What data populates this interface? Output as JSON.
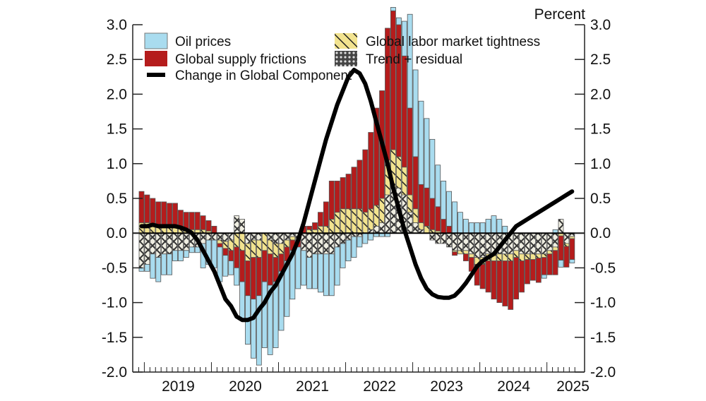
{
  "chart_data": {
    "type": "bar",
    "stacked": true,
    "title": "",
    "ylabel_right": "Percent",
    "xlabel": "",
    "ylim": [
      -2.0,
      3.0
    ],
    "yticks": [
      "3.0",
      "2.5",
      "2.0",
      "1.5",
      "1.0",
      "0.5",
      "0.0",
      "-0.5",
      "-1.0",
      "-1.5",
      "-2.0"
    ],
    "ytick_values": [
      3.0,
      2.5,
      2.0,
      1.5,
      1.0,
      0.5,
      0.0,
      -0.5,
      -1.0,
      -1.5,
      -2.0
    ],
    "xtick_labels": [
      "2019",
      "2020",
      "2021",
      "2022",
      "2023",
      "2024",
      "2025"
    ],
    "x_start": "2018-12",
    "x_frequency": "monthly",
    "legend": {
      "placement": "top-left",
      "items": [
        {
          "key": "oil",
          "label": "Oil prices",
          "color": "#a9dcef",
          "pattern": "solid"
        },
        {
          "key": "labor",
          "label": "Global labor market tightness",
          "color": "#f2e38f",
          "pattern": "diagonal-hatch"
        },
        {
          "key": "supply",
          "label": "Global supply frictions",
          "color": "#b51c1c",
          "pattern": "solid"
        },
        {
          "key": "trend",
          "label": "Trend + residual",
          "color": "#efeee2",
          "pattern": "crosshatch"
        },
        {
          "key": "line",
          "label": "Change in Global Component",
          "color": "#000000",
          "pattern": "line"
        }
      ]
    },
    "series": [
      {
        "name": "Oil prices",
        "key": "oil",
        "values": [
          -0.05,
          -0.1,
          -0.35,
          -0.35,
          -0.3,
          -0.3,
          -0.15,
          -0.15,
          -0.1,
          -0.08,
          -0.08,
          -0.35,
          -0.35,
          -0.4,
          -0.5,
          -0.3,
          -0.2,
          -0.25,
          -0.55,
          -0.7,
          -0.85,
          -1.0,
          -0.95,
          -1.0,
          -0.95,
          -0.85,
          -0.8,
          -0.7,
          -0.6,
          -0.5,
          -0.45,
          -0.5,
          -0.55,
          -0.6,
          -0.6,
          -0.55,
          -0.35,
          -0.3,
          -0.3,
          -0.15,
          -0.15,
          -0.1,
          -0.05,
          -0.05,
          -0.05,
          0.05,
          0.1,
          0.5,
          1.35,
          1.25,
          1.2,
          1.0,
          0.85,
          0.6,
          0.55,
          0.5,
          0.45,
          0.3,
          0.2,
          0.15,
          0.15,
          0.15,
          0.2,
          0.25,
          0.2,
          0.1,
          0.0,
          0.0,
          0.0,
          0.0,
          0.0,
          0.0,
          -0.05,
          0.0,
          0.05,
          -0.1,
          0.0,
          -0.05
        ],
        "note": "oil positive/negative contribution per month"
      },
      {
        "name": "Global supply frictions",
        "key": "supply",
        "values": [
          0.45,
          0.4,
          0.4,
          0.35,
          0.35,
          0.35,
          0.35,
          0.25,
          0.25,
          0.25,
          0.25,
          0.2,
          0.15,
          0.1,
          -0.05,
          -0.1,
          -0.15,
          -0.3,
          -0.45,
          -0.5,
          -0.6,
          -0.55,
          -0.45,
          -0.45,
          -0.35,
          -0.25,
          -0.2,
          -0.15,
          -0.1,
          0.1,
          0.05,
          0.1,
          0.2,
          0.35,
          0.55,
          0.45,
          0.45,
          0.5,
          0.6,
          0.7,
          0.9,
          1.1,
          1.4,
          1.55,
          1.9,
          2.0,
          1.9,
          1.6,
          1.25,
          0.75,
          0.55,
          0.55,
          0.45,
          0.35,
          0.2,
          0.1,
          -0.05,
          0.0,
          -0.1,
          -0.2,
          -0.3,
          -0.35,
          -0.45,
          -0.55,
          -0.6,
          -0.65,
          -0.7,
          -0.6,
          -0.45,
          -0.35,
          -0.3,
          -0.35,
          -0.25,
          -0.3,
          -0.35,
          -0.35,
          -0.3,
          -0.3
        ]
      },
      {
        "name": "Global labor market tightness",
        "key": "labor",
        "values": [
          0.15,
          0.15,
          0.1,
          0.1,
          0.1,
          0.08,
          0.08,
          0.08,
          0.05,
          0.05,
          0.05,
          0.05,
          0.03,
          0.0,
          -0.05,
          -0.1,
          -0.15,
          -0.2,
          -0.25,
          -0.25,
          -0.25,
          -0.25,
          -0.25,
          -0.2,
          -0.2,
          -0.15,
          -0.1,
          -0.05,
          0.0,
          0.0,
          0.05,
          0.05,
          0.1,
          0.1,
          0.2,
          0.3,
          0.35,
          0.35,
          0.35,
          0.35,
          0.3,
          0.3,
          0.3,
          0.35,
          0.5,
          0.55,
          0.45,
          0.4,
          0.25,
          0.2,
          0.1,
          0.1,
          0.05,
          0.03,
          0.0,
          0.0,
          -0.02,
          -0.05,
          -0.05,
          -0.05,
          -0.1,
          -0.1,
          -0.1,
          -0.1,
          -0.1,
          -0.1,
          -0.1,
          -0.1,
          -0.1,
          -0.08,
          -0.08,
          -0.06,
          -0.05,
          -0.05,
          -0.05,
          -0.04,
          -0.04,
          -0.03
        ]
      },
      {
        "name": "Trend + residual",
        "key": "trend",
        "values": [
          -0.5,
          -0.45,
          -0.3,
          -0.35,
          -0.3,
          -0.3,
          -0.25,
          -0.25,
          -0.25,
          -0.2,
          -0.2,
          -0.15,
          -0.1,
          -0.1,
          -0.1,
          -0.12,
          -0.1,
          0.25,
          0.2,
          -0.15,
          -0.1,
          -0.1,
          0.0,
          -0.1,
          -0.15,
          -0.15,
          -0.1,
          -0.05,
          -0.1,
          -0.25,
          -0.35,
          -0.3,
          -0.3,
          -0.3,
          -0.3,
          -0.2,
          -0.15,
          -0.1,
          -0.05,
          -0.05,
          0.0,
          0.05,
          0.1,
          0.15,
          0.55,
          0.65,
          0.65,
          0.55,
          0.3,
          0.15,
          0.05,
          0.0,
          -0.1,
          -0.15,
          -0.15,
          -0.2,
          -0.25,
          -0.25,
          -0.25,
          -0.3,
          -0.35,
          -0.35,
          -0.3,
          -0.3,
          -0.3,
          -0.3,
          -0.3,
          -0.25,
          -0.3,
          -0.3,
          -0.3,
          -0.3,
          -0.3,
          -0.25,
          -0.2,
          0.2,
          -0.15,
          -0.05
        ]
      },
      {
        "name": "Change in Global Component",
        "key": "line",
        "type": "line",
        "values": [
          0.1,
          0.1,
          0.12,
          0.1,
          0.1,
          0.1,
          0.1,
          0.08,
          0.05,
          0.0,
          -0.1,
          -0.25,
          -0.4,
          -0.55,
          -0.75,
          -0.95,
          -1.05,
          -1.2,
          -1.25,
          -1.25,
          -1.22,
          -1.1,
          -1.0,
          -0.85,
          -0.75,
          -0.6,
          -0.45,
          -0.3,
          -0.1,
          0.15,
          0.45,
          0.75,
          1.05,
          1.35,
          1.6,
          1.85,
          2.05,
          2.25,
          2.35,
          2.3,
          2.15,
          1.9,
          1.6,
          1.3,
          1.0,
          0.65,
          0.35,
          0.05,
          -0.2,
          -0.45,
          -0.65,
          -0.8,
          -0.88,
          -0.92,
          -0.93,
          -0.93,
          -0.9,
          -0.82,
          -0.72,
          -0.6,
          -0.48,
          -0.4,
          -0.35,
          -0.3,
          -0.2,
          -0.1,
          0.0,
          0.1,
          0.15,
          0.2,
          0.25,
          0.3,
          0.35,
          0.4,
          0.45,
          0.5,
          0.55,
          0.6
        ]
      }
    ]
  }
}
